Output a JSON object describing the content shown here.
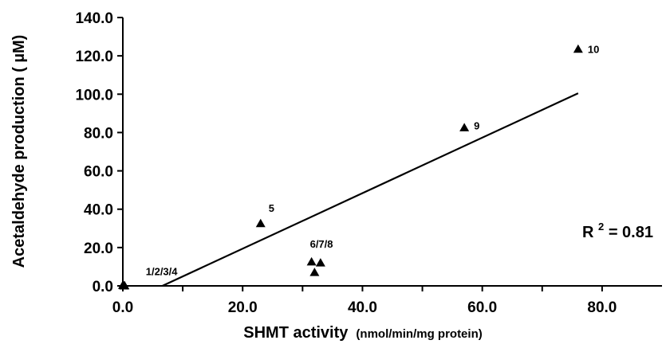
{
  "chart_data": {
    "type": "scatter",
    "xlabel": "SHMT activity",
    "xlabel_unit": "(nmol/min/mg protein)",
    "ylabel": "Acetaldehyde production ( µM)",
    "xlim": [
      0,
      90
    ],
    "ylim": [
      0,
      140
    ],
    "x_ticks": [
      "0.0",
      "20.0",
      "40.0",
      "60.0",
      "80.0"
    ],
    "y_ticks": [
      "0.0",
      "20.0",
      "40.0",
      "60.0",
      "80.0",
      "100.0",
      "120.0",
      "140.0"
    ],
    "series": [
      {
        "marker": "triangle",
        "points": [
          {
            "x": 0.1,
            "y": 0.2
          },
          {
            "x": 0.3,
            "y": 0.1
          },
          {
            "x": 0.0,
            "y": 0.3
          },
          {
            "x": 0.2,
            "y": 0.0
          },
          {
            "x": 23.0,
            "y": 32.5
          },
          {
            "x": 31.5,
            "y": 12.5
          },
          {
            "x": 32.0,
            "y": 7.0
          },
          {
            "x": 33.0,
            "y": 12.0
          },
          {
            "x": 57.0,
            "y": 82.5
          },
          {
            "x": 76.0,
            "y": 123.5
          }
        ]
      }
    ],
    "point_labels": [
      {
        "text": "1/2/3/4",
        "x": 0.1,
        "y": 0.2
      },
      {
        "text": "5",
        "x": 23.0,
        "y": 32.5
      },
      {
        "text": "6/7/8",
        "x": 31.5,
        "y": 12.5
      },
      {
        "text": "9",
        "x": 57.0,
        "y": 82.5
      },
      {
        "text": "10",
        "x": 76.0,
        "y": 123.5
      }
    ],
    "trendline": {
      "x": [
        6.6,
        76.0
      ],
      "y": [
        0.0,
        100.5
      ]
    },
    "annotation": {
      "base": "R",
      "sup": "2",
      "rest": " = 0.81"
    },
    "grid": false,
    "legend": "none"
  }
}
